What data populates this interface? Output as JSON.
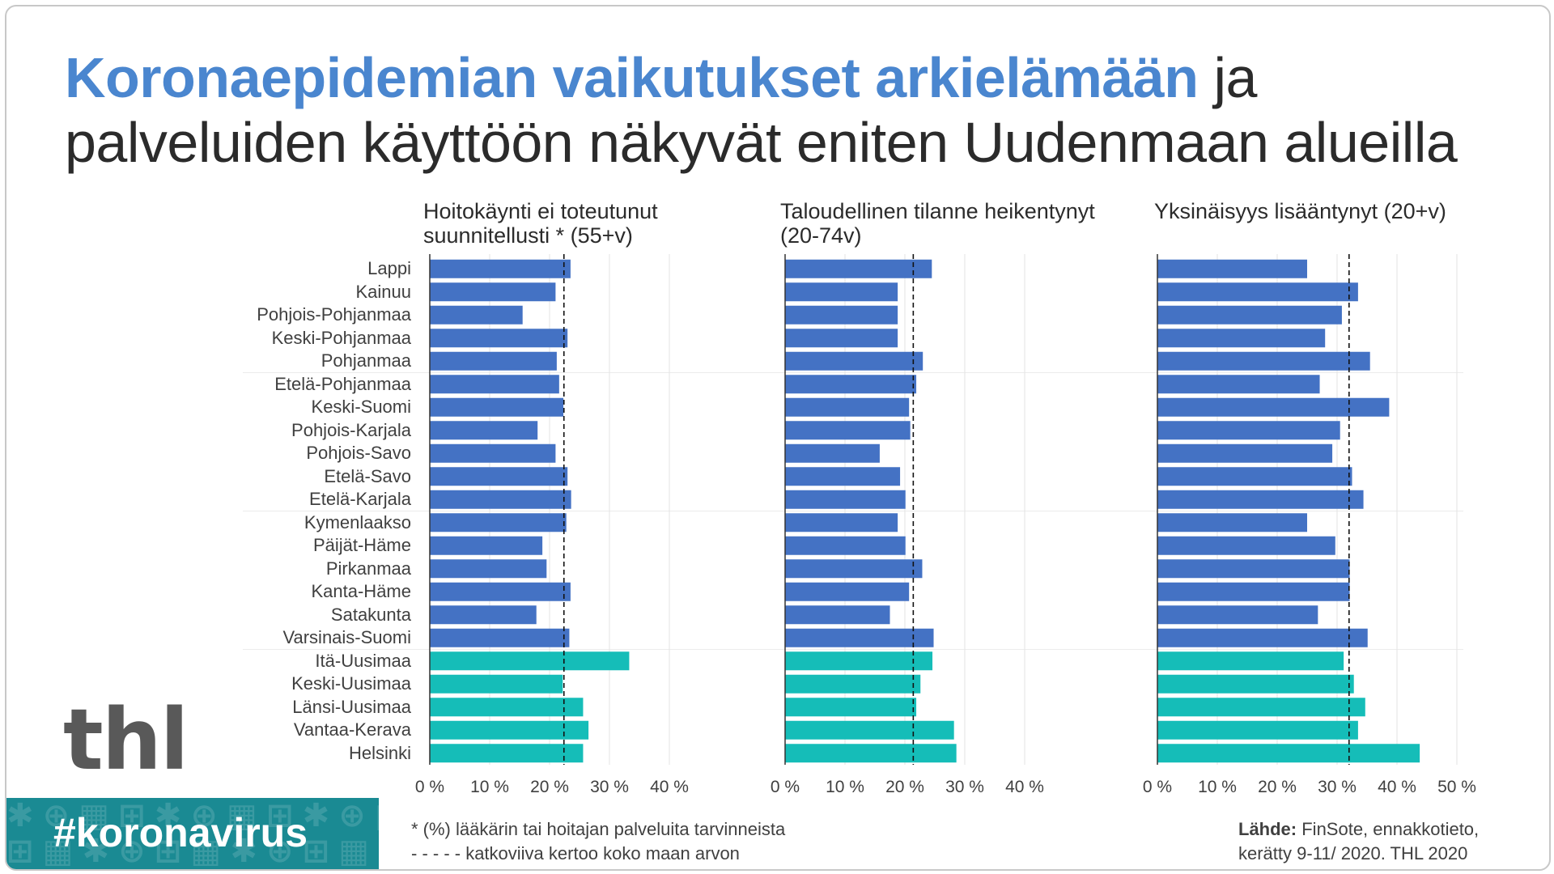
{
  "title": {
    "accent": "Koronaepidemian vaikutukset arkielämään",
    "rest_line1": " ja",
    "line2": "palveluiden käyttöön näkyvät eniten Uudenmaan alueilla"
  },
  "colors": {
    "blue": "#4472c4",
    "teal": "#15bdb8",
    "grid": "#e3e3e3",
    "axis": "#333333"
  },
  "chart_data": [
    {
      "type": "bar",
      "title": "Hoitokäynti ei toteutunut suunnitellusti * (55+v)",
      "title_lines": [
        "Hoitokäynti ei toteutunut",
        "suunnitellusti * (55+v)"
      ],
      "categories": [
        "Lappi",
        "Kainuu",
        "Pohjois-Pohjanmaa",
        "Keski-Pohjanmaa",
        "Pohjanmaa",
        "Etelä-Pohjanmaa",
        "Keski-Suomi",
        "Pohjois-Karjala",
        "Pohjois-Savo",
        "Etelä-Savo",
        "Etelä-Karjala",
        "Kymenlaakso",
        "Päijät-Häme",
        "Pirkanmaa",
        "Kanta-Häme",
        "Satakunta",
        "Varsinais-Suomi",
        "Itä-Uusimaa",
        "Keski-Uusimaa",
        "Länsi-Uusimaa",
        "Vantaa-Kerava",
        "Helsinki"
      ],
      "values": [
        23.5,
        21.0,
        15.5,
        23.0,
        21.2,
        21.6,
        22.3,
        18.0,
        21.0,
        23.0,
        23.6,
        22.8,
        18.8,
        19.5,
        23.5,
        17.8,
        23.3,
        33.3,
        22.2,
        25.6,
        26.5,
        25.6
      ],
      "reference": 22.4,
      "xlim": [
        0,
        50
      ],
      "ticks": [
        "0 %",
        "10 %",
        "20 %",
        "30 %",
        "40 %"
      ]
    },
    {
      "type": "bar",
      "title": "Taloudellinen tilanne heikentynyt (20-74v)",
      "title_lines": [
        "Taloudellinen tilanne heikentynyt",
        "(20-74v)"
      ],
      "categories": [
        "Lappi",
        "Kainuu",
        "Pohjois-Pohjanmaa",
        "Keski-Pohjanmaa",
        "Pohjanmaa",
        "Etelä-Pohjanmaa",
        "Keski-Suomi",
        "Pohjois-Karjala",
        "Pohjois-Savo",
        "Etelä-Savo",
        "Etelä-Karjala",
        "Kymenlaakso",
        "Päijät-Häme",
        "Pirkanmaa",
        "Kanta-Häme",
        "Satakunta",
        "Varsinais-Suomi",
        "Itä-Uusimaa",
        "Keski-Uusimaa",
        "Länsi-Uusimaa",
        "Vantaa-Kerava",
        "Helsinki"
      ],
      "values": [
        24.5,
        18.8,
        18.8,
        18.8,
        23.0,
        21.9,
        20.7,
        20.9,
        15.8,
        19.2,
        20.1,
        18.8,
        20.1,
        22.9,
        20.7,
        17.5,
        24.8,
        24.6,
        22.6,
        21.9,
        28.2,
        28.6
      ],
      "reference": 21.4,
      "xlim": [
        0,
        50
      ],
      "ticks": [
        "0 %",
        "10 %",
        "20 %",
        "30 %",
        "40 %"
      ]
    },
    {
      "type": "bar",
      "title": "Yksinäisyys lisääntynyt (20+v)",
      "title_lines": [
        "Yksinäisyys lisääntynyt (20+v)"
      ],
      "categories": [
        "Lappi",
        "Kainuu",
        "Pohjois-Pohjanmaa",
        "Keski-Pohjanmaa",
        "Pohjanmaa",
        "Etelä-Pohjanmaa",
        "Keski-Suomi",
        "Pohjois-Karjala",
        "Pohjois-Savo",
        "Etelä-Savo",
        "Etelä-Karjala",
        "Kymenlaakso",
        "Päijät-Häme",
        "Pirkanmaa",
        "Kanta-Häme",
        "Satakunta",
        "Varsinais-Suomi",
        "Itä-Uusimaa",
        "Keski-Uusimaa",
        "Länsi-Uusimaa",
        "Vantaa-Kerava",
        "Helsinki"
      ],
      "values": [
        25.0,
        33.5,
        30.8,
        28.0,
        35.5,
        27.1,
        38.7,
        30.5,
        29.2,
        32.5,
        34.4,
        25.0,
        29.7,
        32.1,
        32.1,
        26.8,
        35.1,
        31.1,
        32.8,
        34.7,
        33.5,
        43.8
      ],
      "reference": 32.0,
      "xlim": [
        0,
        50
      ],
      "ticks": [
        "0 %",
        "10 %",
        "20 %",
        "30 %",
        "40 %",
        "50 %"
      ]
    }
  ],
  "highlight_from_index": 17,
  "logo_text": "thl",
  "hashtag": "#koronavirus",
  "footnote": {
    "line1": "* (%) lääkärin tai hoitajan palveluita tarvinneista",
    "line2": "- - - - -  katkoviiva kertoo koko maan arvon"
  },
  "source": {
    "label": "Lähde:",
    "line1": " FinSote, ennakkotieto,",
    "line2": "kerätty 9-11/ 2020. THL 2020"
  }
}
